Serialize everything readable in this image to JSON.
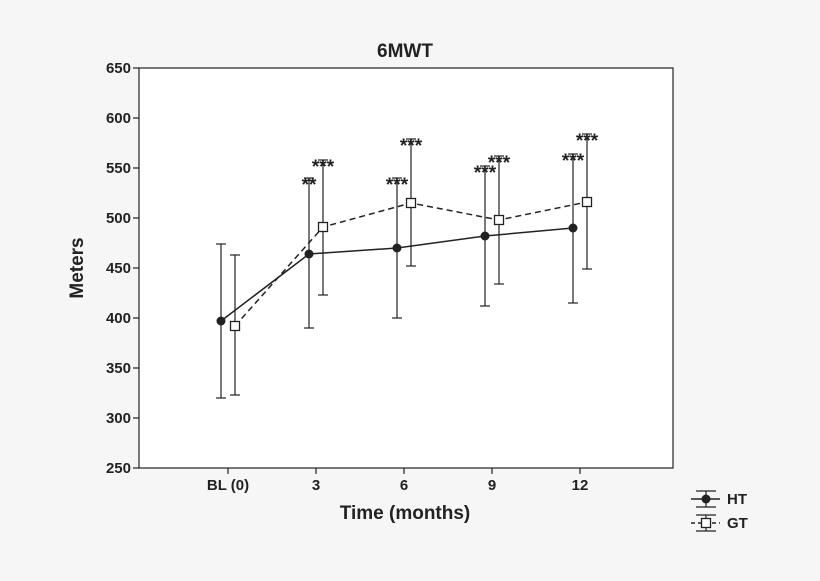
{
  "chart_data": {
    "type": "line",
    "title": "6MWT",
    "xlabel": "Time (months)",
    "ylabel": "Meters",
    "categories": [
      "BL (0)",
      "3",
      "6",
      "9",
      "12"
    ],
    "ylim": [
      250,
      650
    ],
    "yticks": [
      250,
      300,
      350,
      400,
      450,
      500,
      550,
      600,
      650
    ],
    "grid": false,
    "legend_position": "bottom-right-outside",
    "series": [
      {
        "name": "HT",
        "marker": "filled-circle",
        "line_style": "solid",
        "values": [
          397,
          464,
          470,
          482,
          490
        ],
        "err_low": [
          320,
          390,
          400,
          412,
          415
        ],
        "err_high": [
          474,
          540,
          540,
          552,
          564
        ],
        "significance": [
          "",
          "**",
          "***",
          "***",
          "***"
        ]
      },
      {
        "name": "GT",
        "marker": "open-square",
        "line_style": "dashed",
        "values": [
          392,
          491,
          515,
          498,
          516
        ],
        "err_low": [
          323,
          423,
          452,
          434,
          449
        ],
        "err_high": [
          463,
          558,
          579,
          562,
          584
        ],
        "significance": [
          "",
          "***",
          "***",
          "***",
          "***"
        ]
      }
    ]
  }
}
